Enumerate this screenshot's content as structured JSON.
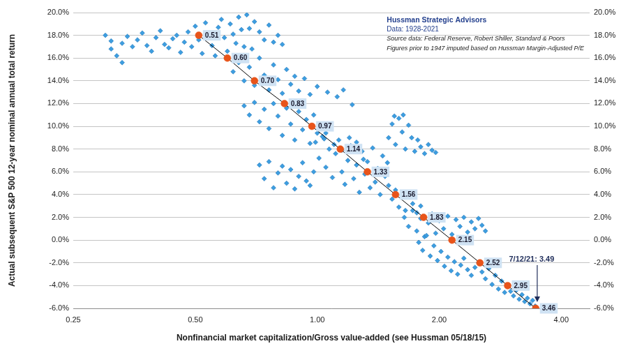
{
  "chart_data": {
    "type": "scatter",
    "x_label": "Nonfinancial market capitalization/Gross value-added (see Hussman 05/18/15)",
    "y_label": "Actual subsequent S&P 500 12-year nominal annual total return",
    "source_box": {
      "title": "Hussman Strategic Advisors",
      "subtitle": "Data: 1928-2021",
      "notes": [
        "Source data: Federal Reserve, Robert Shiller, Standard & Poors",
        "Figures prior to 1947 imputed based on Hussman Margin-Adjusted P/E"
      ]
    },
    "annotation": {
      "text": "7/12/21: 3.49",
      "x": 3.49,
      "y": -6
    },
    "log": "x",
    "grid": true,
    "xlim": [
      0.25,
      4.7
    ],
    "xticks": [
      0.25,
      {
        "value": 0.5,
        "label": "0.50"
      },
      {
        "value": 1,
        "label": "1.00"
      },
      {
        "value": 2,
        "label": "2.00"
      },
      {
        "value": 4,
        "label": "4.00"
      }
    ],
    "ylim": [
      -6,
      20
    ],
    "yticks": [
      {
        "value": -6,
        "label": "-6.0%"
      },
      {
        "value": -4,
        "label": "-4.0%"
      },
      {
        "value": -2,
        "label": "-2.0%"
      },
      {
        "value": 0,
        "label": "0.0%"
      },
      {
        "value": 2,
        "label": "2.0%"
      },
      {
        "value": 4,
        "label": "4.0%"
      },
      {
        "value": 6,
        "label": "6.0%"
      },
      {
        "value": 8,
        "label": "8.0%"
      },
      {
        "value": 10,
        "label": "10.0%"
      },
      {
        "value": 12,
        "label": "12.0%"
      },
      {
        "value": 14,
        "label": "14.0%"
      },
      {
        "value": 16,
        "label": "16.0%"
      },
      {
        "value": 18,
        "label": "18.0%"
      },
      {
        "value": 20,
        "label": "20.0%"
      }
    ],
    "y2lim": [
      -6,
      20
    ],
    "y2ticks": [
      {
        "value": -6,
        "label": "-6.0%"
      },
      {
        "value": -4,
        "label": "-4.0%"
      },
      {
        "value": -2,
        "label": "-2.0%"
      },
      {
        "value": 0,
        "label": "0.0%"
      },
      {
        "value": 2,
        "label": "2.0%"
      },
      {
        "value": 4,
        "label": "4.0%"
      },
      {
        "value": 6,
        "label": "6.0%"
      },
      {
        "value": 8,
        "label": "8.0%"
      },
      {
        "value": 10,
        "label": "10.0%"
      },
      {
        "value": 12,
        "label": "12.0%"
      },
      {
        "value": 14,
        "label": "14.0%"
      },
      {
        "value": 16,
        "label": "16.0%"
      },
      {
        "value": 18,
        "label": "18.0%"
      },
      {
        "value": 20,
        "label": "20.0%"
      }
    ],
    "series": [
      {
        "type": "line",
        "color": "#000000",
        "line_style": "solid",
        "marker": "circle",
        "colors": [
          "#e8541a",
          "#e8541a",
          "#e8541a",
          "#e8541a",
          "#e8541a",
          "#e8541a",
          "#e8541a",
          "#e8541a",
          "#e8541a",
          "#e8541a",
          "#e8541a",
          "#e8541a",
          "#e8541a"
        ],
        "data_labels": true,
        "x": [
          0.51,
          0.6,
          0.7,
          0.83,
          0.97,
          1.14,
          1.33,
          1.56,
          1.83,
          2.15,
          2.52,
          2.95,
          3.46
        ],
        "values": [
          18,
          16,
          14,
          12,
          10,
          8,
          6,
          4,
          2,
          0,
          -2,
          -4,
          -6
        ],
        "point_labels": [
          "0.51",
          "0.60",
          "0.70",
          "0.83",
          "0.97",
          "1.14",
          "1.33",
          "1.56",
          "1.83",
          "2.15",
          "2.52",
          "2.95",
          "3.46"
        ]
      },
      {
        "type": "scatter",
        "color": "#3d9ee0",
        "marker": "diamond",
        "x": [
          0.3,
          0.31,
          0.31,
          0.32,
          0.33,
          0.33,
          0.34,
          0.35,
          0.36,
          0.37,
          0.38,
          0.39,
          0.4,
          0.41,
          0.42,
          0.43,
          0.44,
          0.45,
          0.46,
          0.47,
          0.48,
          0.49,
          0.5,
          0.51,
          0.52,
          0.53,
          0.54,
          0.55,
          0.56,
          0.57,
          0.58,
          0.59,
          0.6,
          0.61,
          0.62,
          0.63,
          0.64,
          0.65,
          0.66,
          0.67,
          0.68,
          0.69,
          0.7,
          0.72,
          0.74,
          0.76,
          0.78,
          0.8,
          0.82,
          0.62,
          0.64,
          0.66,
          0.68,
          0.7,
          0.72,
          0.74,
          0.76,
          0.78,
          0.8,
          0.82,
          0.84,
          0.86,
          0.88,
          0.9,
          0.93,
          0.96,
          1.0,
          1.06,
          1.12,
          1.16,
          1.22,
          0.66,
          0.68,
          0.7,
          0.72,
          0.74,
          0.76,
          0.78,
          0.8,
          0.82,
          0.84,
          0.86,
          0.88,
          0.9,
          0.92,
          0.94,
          0.96,
          0.98,
          1.0,
          1.02,
          1.04,
          0.72,
          0.74,
          0.76,
          0.78,
          0.8,
          0.82,
          0.84,
          0.86,
          0.88,
          0.9,
          0.92,
          0.94,
          0.96,
          0.98,
          0.99,
          1.01,
          1.03,
          1.05,
          1.07,
          1.09,
          1.11,
          1.13,
          1.15,
          1.17,
          1.19,
          1.21,
          1.23,
          1.25,
          1.27,
          1.29,
          1.31,
          1.33,
          1.35,
          1.37,
          1.39,
          1.41,
          1.43,
          1.45,
          1.47,
          1.49,
          1.05,
          1.1,
          1.15,
          1.2,
          1.25,
          1.3,
          1.5,
          1.53,
          1.56,
          1.59,
          1.62,
          1.65,
          1.68,
          1.71,
          1.74,
          1.77,
          1.8,
          1.84,
          1.88,
          1.92,
          1.96,
          1.55,
          1.63,
          1.5,
          1.53,
          1.56,
          1.59,
          1.62,
          1.65,
          1.68,
          1.72,
          1.76,
          1.8,
          1.64,
          1.68,
          1.72,
          1.76,
          1.8,
          1.84,
          1.88,
          1.92,
          1.96,
          2.0,
          2.05,
          2.1,
          2.15,
          2.2,
          2.25,
          2.3,
          2.35,
          2.4,
          2.45,
          2.5,
          2.55,
          2.6,
          1.78,
          1.82,
          1.86,
          1.9,
          1.94,
          1.98,
          2.02,
          2.06,
          2.1,
          2.14,
          2.18,
          2.22,
          2.26,
          2.3,
          2.35,
          2.4,
          2.45,
          2.5,
          2.55,
          2.6,
          2.65,
          2.7,
          2.75,
          2.8,
          2.85,
          2.9,
          2.95,
          3.0,
          3.05,
          3.1,
          3.15,
          3.2,
          3.25,
          3.3,
          3.35,
          3.4,
          3.45
        ],
        "values": [
          18.0,
          17.5,
          16.8,
          16.2,
          15.6,
          17.3,
          17.9,
          17.0,
          17.6,
          18.2,
          17.1,
          16.6,
          17.8,
          18.4,
          17.2,
          16.9,
          17.7,
          18.0,
          16.5,
          17.4,
          18.3,
          17.0,
          18.8,
          17.6,
          16.4,
          19.1,
          18.2,
          17.1,
          16.2,
          18.7,
          19.4,
          17.8,
          16.6,
          19.0,
          18.1,
          17.3,
          19.6,
          18.5,
          17.0,
          19.8,
          18.6,
          16.8,
          19.2,
          18.3,
          17.6,
          18.9,
          17.4,
          18.0,
          17.2,
          14.8,
          15.6,
          14.0,
          15.2,
          13.6,
          16.0,
          14.5,
          13.2,
          15.4,
          14.1,
          12.9,
          15.0,
          13.7,
          14.4,
          13.1,
          14.2,
          12.8,
          13.5,
          13.0,
          12.6,
          13.2,
          11.9,
          11.8,
          11.0,
          12.1,
          10.4,
          11.5,
          9.8,
          12.0,
          10.9,
          9.2,
          11.6,
          10.2,
          8.8,
          11.3,
          9.7,
          10.6,
          8.5,
          11.0,
          9.4,
          10.1,
          8.9,
          6.6,
          5.4,
          6.9,
          4.6,
          5.9,
          6.5,
          5.0,
          6.2,
          4.5,
          5.6,
          6.8,
          5.2,
          4.8,
          6.0,
          8.6,
          7.2,
          9.1,
          6.4,
          8.0,
          5.5,
          7.6,
          8.8,
          6.0,
          4.9,
          7.0,
          8.3,
          5.4,
          6.6,
          4.2,
          7.8,
          5.8,
          6.9,
          4.6,
          8.1,
          5.1,
          6.3,
          4.0,
          7.4,
          5.6,
          6.8,
          9.4,
          8.4,
          7.9,
          9.0,
          8.6,
          7.1,
          9.0,
          10.2,
          8.4,
          10.7,
          9.5,
          8.0,
          10.1,
          9.0,
          7.8,
          8.8,
          8.2,
          7.6,
          8.4,
          7.9,
          7.7,
          10.9,
          11.0,
          4.8,
          3.6,
          4.4,
          2.9,
          3.9,
          2.6,
          4.1,
          3.2,
          2.4,
          3.0,
          2.0,
          1.2,
          2.6,
          0.8,
          1.9,
          0.3,
          1.5,
          2.3,
          0.6,
          1.7,
          1.0,
          2.1,
          0.5,
          1.8,
          1.2,
          2.0,
          0.7,
          1.6,
          1.0,
          1.9,
          1.3,
          0.8,
          -0.2,
          -0.9,
          0.4,
          -1.4,
          -0.5,
          -1.8,
          -1.0,
          -2.3,
          -1.5,
          -2.7,
          -1.9,
          -3.0,
          -2.2,
          -1.6,
          -2.6,
          -3.1,
          -2.4,
          -2.0,
          -2.8,
          -3.4,
          -2.5,
          -3.9,
          -3.1,
          -4.3,
          -3.6,
          -4.6,
          -4.0,
          -4.5,
          -4.9,
          -4.4,
          -5.2,
          -4.8,
          -5.4,
          -5.1,
          -5.6,
          -5.3,
          -5.8
        ]
      }
    ]
  }
}
